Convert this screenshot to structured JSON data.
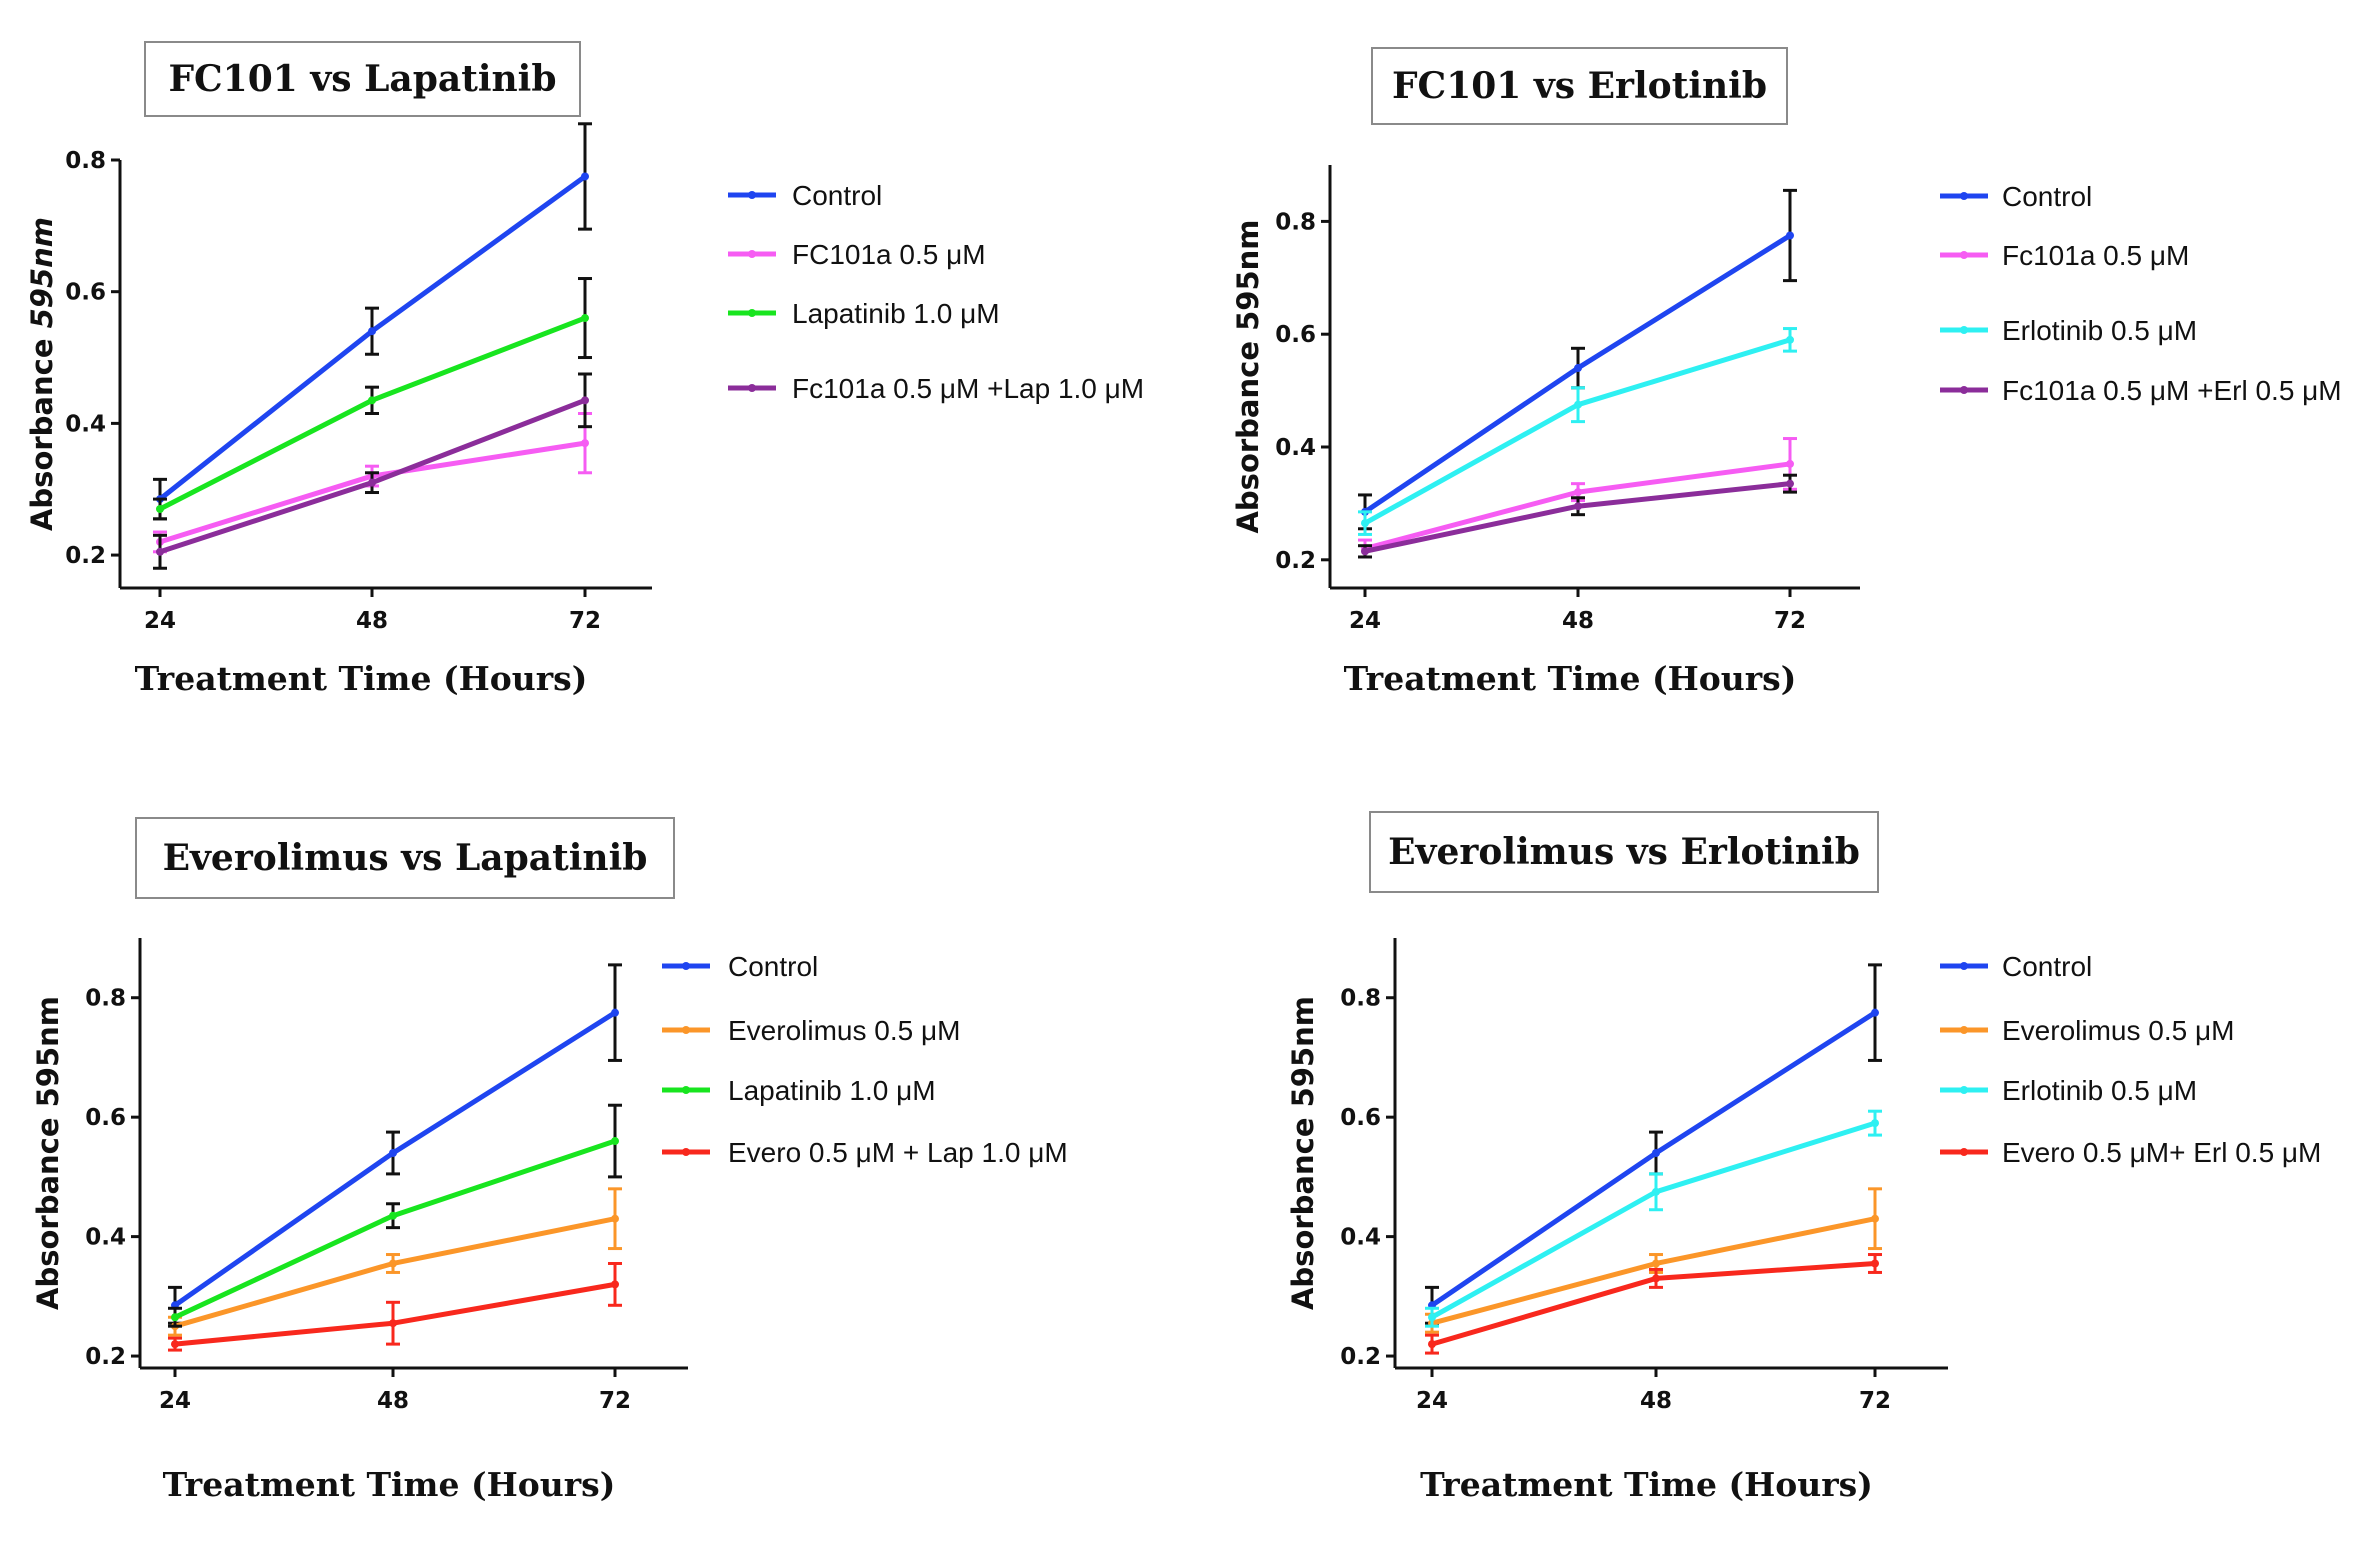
{
  "colors": {
    "control": "#1f45f0",
    "fc101a": "#f65cf3",
    "lapatinib": "#18e51f",
    "erlotinib": "#2ef0f2",
    "combo_fc": "#8b2d9a",
    "everolimus": "#fb9629",
    "combo_evero": "#f8281d",
    "errorbar": "#111111"
  },
  "chart_data": [
    {
      "type": "line",
      "title": "FC101 vs Lapatinib",
      "xlabel": "Treatment Time (Hours)",
      "ylabel_main": "Absorbance ",
      "ylabel_italic": "595nm",
      "x": [
        24,
        48,
        72
      ],
      "x_ticks": [
        "24",
        "48",
        "72"
      ],
      "ylim": [
        0.15,
        0.8
      ],
      "y_ticks": [
        "0.2",
        "0.4",
        "0.6",
        "0.8"
      ],
      "y_tick_values": [
        0.2,
        0.4,
        0.6,
        0.8
      ],
      "grid": false,
      "legend_position": "right",
      "series": [
        {
          "name": "Control",
          "color_key": "control",
          "values": [
            0.285,
            0.54,
            0.775
          ],
          "errors": [
            0.03,
            0.035,
            0.08
          ]
        },
        {
          "name": "FC101a 0.5 μM",
          "color_key": "fc101a",
          "values": [
            0.22,
            0.32,
            0.37
          ],
          "errors": [
            0.015,
            0.015,
            0.045
          ]
        },
        {
          "name": "Lapatinib 1.0 μM",
          "color_key": "lapatinib",
          "values": [
            0.27,
            0.435,
            0.56
          ],
          "errors": [
            0.015,
            0.02,
            0.06
          ]
        },
        {
          "name": "Fc101a 0.5 μM +Lap 1.0 μM",
          "color_key": "combo_fc",
          "values": [
            0.205,
            0.31,
            0.435
          ],
          "errors": [
            0.025,
            0.015,
            0.04
          ]
        }
      ]
    },
    {
      "type": "line",
      "title": "FC101 vs Erlotinib",
      "xlabel": "Treatment Time (Hours)",
      "ylabel_main": "Absorbance 595nm",
      "ylabel_italic": "",
      "x": [
        24,
        48,
        72
      ],
      "x_ticks": [
        "24",
        "48",
        "72"
      ],
      "ylim": [
        0.15,
        0.9
      ],
      "y_ticks": [
        "0.2",
        "0.4",
        "0.6",
        "0.8"
      ],
      "y_tick_values": [
        0.2,
        0.4,
        0.6,
        0.8
      ],
      "grid": false,
      "legend_position": "right",
      "series": [
        {
          "name": "Control",
          "color_key": "control",
          "values": [
            0.285,
            0.54,
            0.775
          ],
          "errors": [
            0.03,
            0.035,
            0.08
          ]
        },
        {
          "name": "Fc101a 0.5 μM",
          "color_key": "fc101a",
          "values": [
            0.22,
            0.32,
            0.37
          ],
          "errors": [
            0.015,
            0.015,
            0.045
          ]
        },
        {
          "name": "Erlotinib 0.5 μM",
          "color_key": "erlotinib",
          "values": [
            0.265,
            0.475,
            0.59
          ],
          "errors": [
            0.02,
            0.03,
            0.02
          ]
        },
        {
          "name": "Fc101a 0.5 μM +Erl 0.5 μM",
          "color_key": "combo_fc",
          "values": [
            0.215,
            0.295,
            0.335
          ],
          "errors": [
            0.01,
            0.015,
            0.015
          ]
        }
      ]
    },
    {
      "type": "line",
      "title": "Everolimus vs Lapatinib",
      "xlabel": "Treatment Time (Hours)",
      "ylabel_main": "Absorbance 595nm",
      "ylabel_italic": "",
      "x": [
        24,
        48,
        72
      ],
      "x_ticks": [
        "24",
        "48",
        "72"
      ],
      "ylim": [
        0.18,
        0.9
      ],
      "y_ticks": [
        "0.2",
        "0.4",
        "0.6",
        "0.8"
      ],
      "y_tick_values": [
        0.2,
        0.4,
        0.6,
        0.8
      ],
      "grid": false,
      "legend_position": "right",
      "series": [
        {
          "name": "Control",
          "color_key": "control",
          "values": [
            0.285,
            0.54,
            0.775
          ],
          "errors": [
            0.03,
            0.035,
            0.08
          ]
        },
        {
          "name": "Everolimus 0.5 μM",
          "color_key": "everolimus",
          "values": [
            0.25,
            0.355,
            0.43
          ],
          "errors": [
            0.015,
            0.015,
            0.05
          ]
        },
        {
          "name": "Lapatinib 1.0 μM",
          "color_key": "lapatinib",
          "values": [
            0.265,
            0.435,
            0.56
          ],
          "errors": [
            0.015,
            0.02,
            0.06
          ]
        },
        {
          "name": "Evero 0.5 μM + Lap 1.0 μM",
          "color_key": "combo_evero",
          "values": [
            0.22,
            0.255,
            0.32
          ],
          "errors": [
            0.01,
            0.035,
            0.035
          ]
        }
      ]
    },
    {
      "type": "line",
      "title": "Everolimus vs Erlotinib",
      "xlabel": "Treatment Time (Hours)",
      "ylabel_main": "Absorbance 595nm",
      "ylabel_italic": "",
      "x": [
        24,
        48,
        72
      ],
      "x_ticks": [
        "24",
        "48",
        "72"
      ],
      "ylim": [
        0.18,
        0.9
      ],
      "y_ticks": [
        "0.2",
        "0.4",
        "0.6",
        "0.8"
      ],
      "y_tick_values": [
        0.2,
        0.4,
        0.6,
        0.8
      ],
      "grid": false,
      "legend_position": "right",
      "series": [
        {
          "name": "Control",
          "color_key": "control",
          "values": [
            0.285,
            0.54,
            0.775
          ],
          "errors": [
            0.03,
            0.035,
            0.08
          ]
        },
        {
          "name": "Everolimus 0.5 μM",
          "color_key": "everolimus",
          "values": [
            0.255,
            0.355,
            0.43
          ],
          "errors": [
            0.015,
            0.015,
            0.05
          ]
        },
        {
          "name": "Erlotinib 0.5 μM",
          "color_key": "erlotinib",
          "values": [
            0.265,
            0.475,
            0.59
          ],
          "errors": [
            0.015,
            0.03,
            0.02
          ]
        },
        {
          "name": "Evero 0.5 μM+ Erl 0.5 μM",
          "color_key": "combo_evero",
          "values": [
            0.22,
            0.33,
            0.355
          ],
          "errors": [
            0.015,
            0.015,
            0.015
          ]
        }
      ]
    }
  ]
}
